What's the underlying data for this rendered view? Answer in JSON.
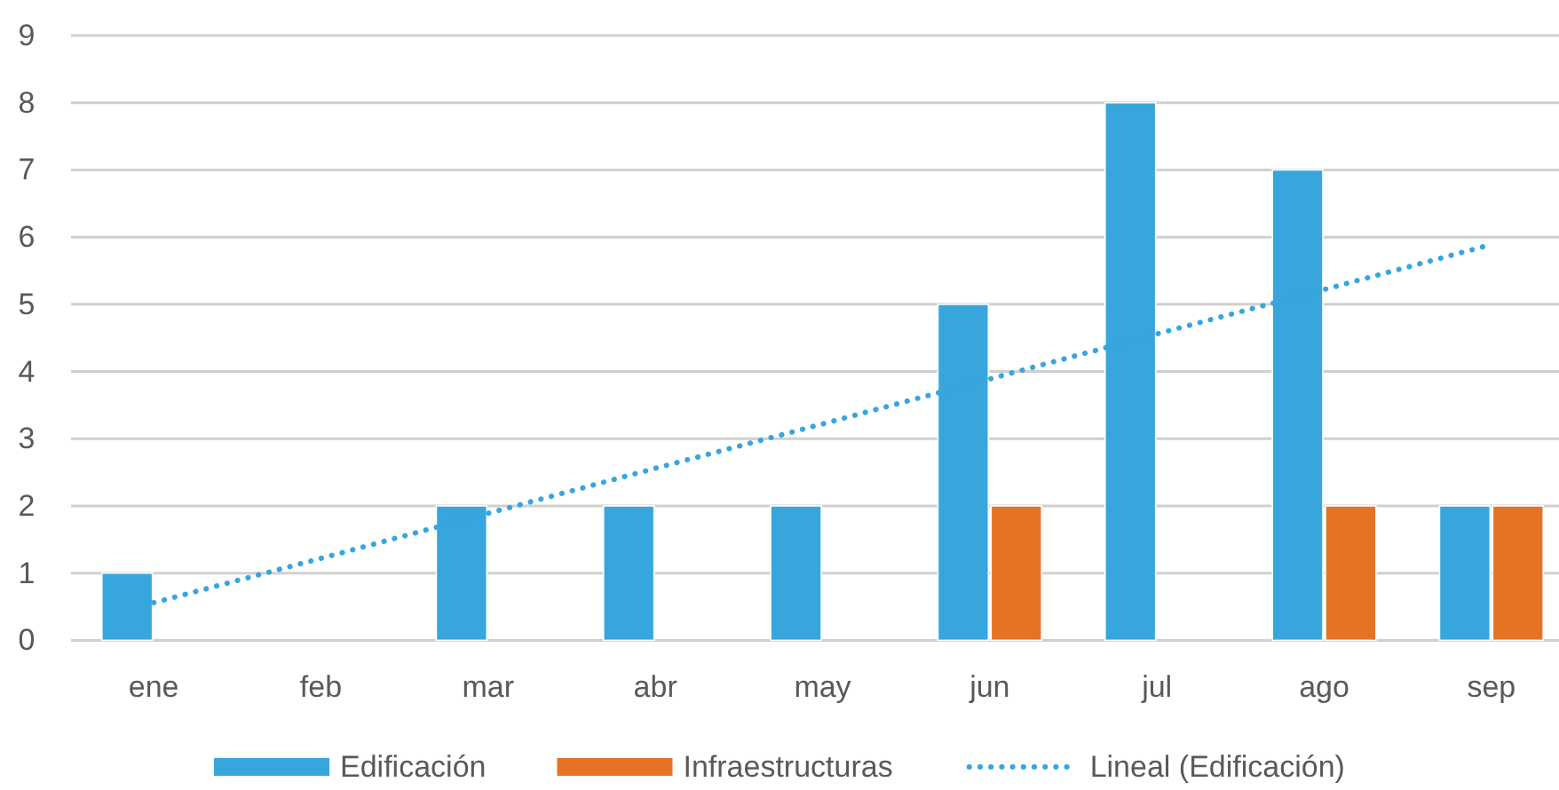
{
  "chart_data": {
    "type": "bar",
    "categories": [
      "ene",
      "feb",
      "mar",
      "abr",
      "may",
      "jun",
      "jul",
      "ago",
      "sep"
    ],
    "series": [
      {
        "name": "Edificación",
        "color": "#36a6dd",
        "values": [
          1,
          0,
          2,
          2,
          2,
          5,
          8,
          7,
          2
        ]
      },
      {
        "name": "Infraestructuras",
        "color": "#e57324",
        "values": [
          0,
          0,
          0,
          0,
          0,
          2,
          0,
          2,
          2
        ]
      },
      {
        "name": "Lineal (Edificación)",
        "type": "line",
        "color": "#36a6dd",
        "line_style": "dotted",
        "marker": "none",
        "values": [
          0.56,
          1.22,
          1.89,
          2.56,
          3.22,
          3.89,
          4.56,
          5.22,
          5.89
        ]
      }
    ],
    "ylim": [
      0,
      9
    ],
    "yticks": [
      0,
      1,
      2,
      3,
      4,
      5,
      6,
      7,
      8,
      9
    ],
    "grid": "y",
    "legend": "bottom"
  }
}
